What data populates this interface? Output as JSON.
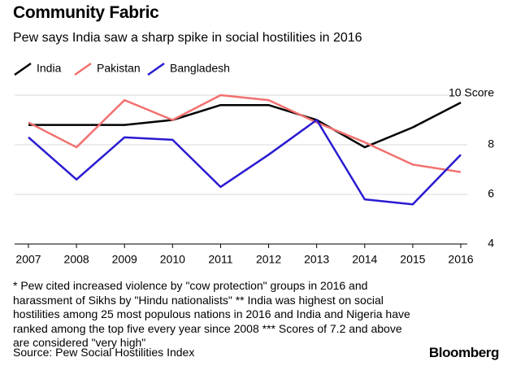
{
  "chart_data": {
    "type": "line",
    "title": "Community Fabric",
    "subtitle": "Pew says India saw a sharp spike in social hostilities in 2016",
    "categories": [
      "2007",
      "2008",
      "2009",
      "2010",
      "2011",
      "2012",
      "2013",
      "2014",
      "2015",
      "2016"
    ],
    "series": [
      {
        "name": "India",
        "color": "#000000",
        "values": [
          8.8,
          8.8,
          8.8,
          9.0,
          9.6,
          9.6,
          9.0,
          7.9,
          8.7,
          9.7
        ]
      },
      {
        "name": "Pakistan",
        "color": "#f2706f",
        "values": [
          8.9,
          7.9,
          9.8,
          9.0,
          10.0,
          9.8,
          8.9,
          8.1,
          7.2,
          6.9
        ]
      },
      {
        "name": "Bangladesh",
        "color": "#2a1bd1",
        "values": [
          8.3,
          6.6,
          8.3,
          8.2,
          6.3,
          7.6,
          9.0,
          5.8,
          5.6,
          7.6
        ]
      }
    ],
    "ylim": [
      4,
      10
    ],
    "yticks": [
      4,
      6,
      8,
      {
        "value": 10,
        "label": "10 Score"
      }
    ],
    "grid": true,
    "legend": "top",
    "note": "* Pew cited increased violence by \"cow protection\" groups in 2016 and harassment of Sikhs by \"Hindu nationalists\" ** India was highest on social hostilities among 25 most populous nations in 2016 and India and Nigeria have ranked among the top five every year since 2008 *** Scores of 7.2 and above are considered \"very high\"",
    "source": "Source: Pew Social Hostilities Index",
    "brand": "Bloomberg"
  }
}
